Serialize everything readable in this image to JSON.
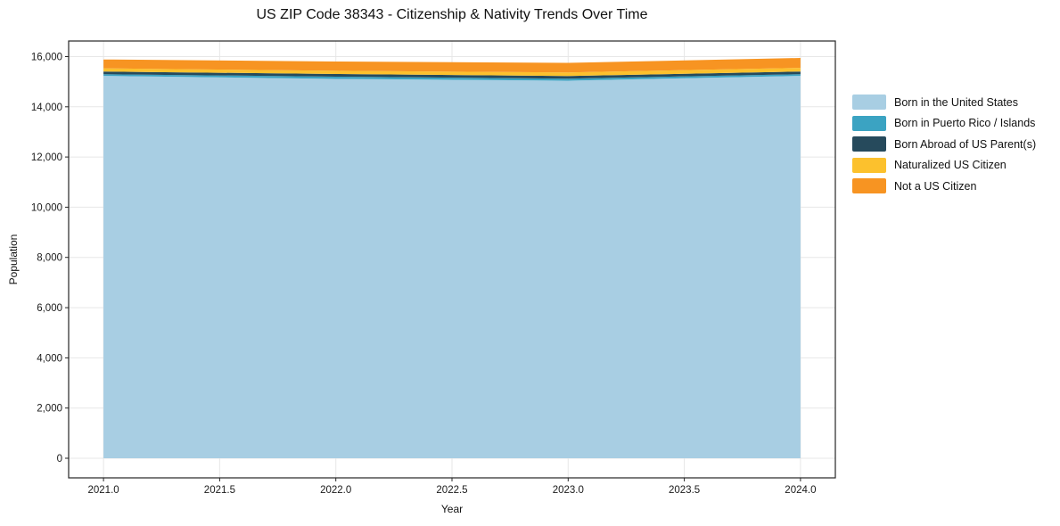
{
  "chart_data": {
    "type": "area",
    "stacked": true,
    "title": "US ZIP Code 38343 - Citizenship & Nativity Trends Over Time",
    "xlabel": "Year",
    "ylabel": "Population",
    "x": [
      2021,
      2022,
      2023,
      2024
    ],
    "series": [
      {
        "name": "Born in the United States",
        "color": "#a8cee3",
        "values": [
          15230,
          15110,
          15040,
          15230
        ]
      },
      {
        "name": "Born in Puerto Rico / Islands",
        "color": "#3ba3c2",
        "values": [
          70,
          90,
          80,
          70
        ]
      },
      {
        "name": "Born Abroad of US Parent(s)",
        "color": "#264a5c",
        "values": [
          105,
          105,
          105,
          105
        ]
      },
      {
        "name": "Naturalized US Citizen",
        "color": "#fcc12d",
        "values": [
          130,
          130,
          140,
          145
        ]
      },
      {
        "name": "Not a US Citizen",
        "color": "#f79422",
        "values": [
          350,
          370,
          385,
          395
        ]
      }
    ],
    "xlim": [
      2020.85,
      2024.15
    ],
    "ylim": [
      -780,
      16620
    ],
    "xticks": {
      "values": [
        2021,
        2021.5,
        2022,
        2022.5,
        2023,
        2023.5,
        2024
      ],
      "labels": [
        "2021.0",
        "2021.5",
        "2022.0",
        "2022.5",
        "2023.0",
        "2023.5",
        "2024.0"
      ]
    },
    "yticks": {
      "values": [
        0,
        2000,
        4000,
        6000,
        8000,
        10000,
        12000,
        14000,
        16000
      ],
      "labels": [
        "0",
        "2,000",
        "4,000",
        "6,000",
        "8,000",
        "10,000",
        "12,000",
        "14,000",
        "16,000"
      ]
    },
    "grid": true,
    "legend_position": "outside-right",
    "colors": {
      "grid": "#e7e7e7",
      "spine": "#262626",
      "text": "#1a1a1a"
    }
  }
}
